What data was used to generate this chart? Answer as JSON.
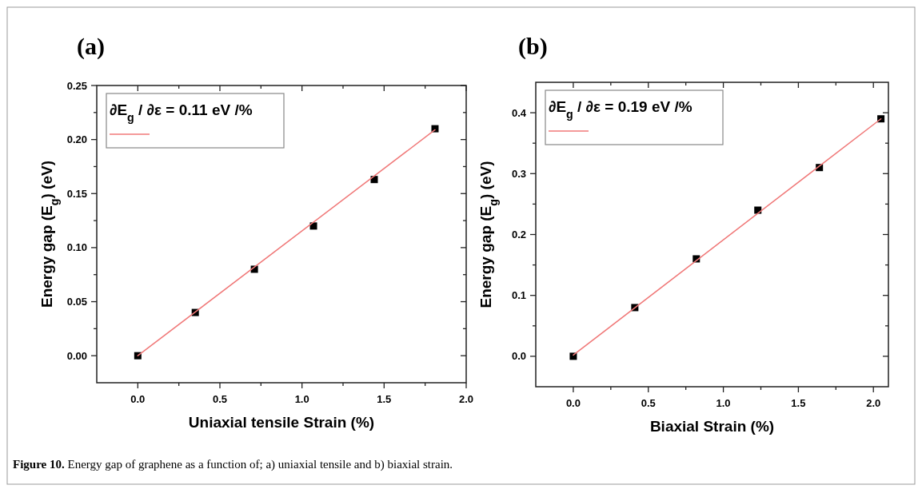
{
  "chart_data": [
    {
      "type": "scatter",
      "title": "(a)",
      "xlabel": "Uniaxial tensile Strain (%)",
      "ylabel": "Energy gap (E$_{g}$) (eV)",
      "legend": "top left",
      "xlim": [
        -0.25,
        2.0
      ],
      "ylim": [
        -0.025,
        0.25
      ],
      "xticks": [
        {
          "value": 0,
          "label": "0.0"
        },
        {
          "value": 0.25,
          "label": null
        },
        {
          "value": 0.5,
          "label": "0.5"
        },
        {
          "value": 0.75,
          "label": null
        },
        {
          "value": 1,
          "label": "1.0"
        },
        {
          "value": 1.25,
          "label": null
        },
        {
          "value": 1.5,
          "label": "1.5"
        },
        {
          "value": 1.75,
          "label": null
        },
        {
          "value": 2,
          "label": "2.0"
        }
      ],
      "yticks": [
        {
          "value": 0,
          "label": "0.00"
        },
        {
          "value": 0.025,
          "label": null
        },
        {
          "value": 0.05,
          "label": "0.05"
        },
        {
          "value": 0.075,
          "label": null
        },
        {
          "value": 0.1,
          "label": "0.10"
        },
        {
          "value": 0.125,
          "label": null
        },
        {
          "value": 0.15,
          "label": "0.15"
        },
        {
          "value": 0.175,
          "label": null
        },
        {
          "value": 0.2,
          "label": "0.20"
        },
        {
          "value": 0.225,
          "label": null
        },
        {
          "value": 0.25,
          "label": "0.25"
        }
      ],
      "series": [
        {
          "color": "#000000",
          "marker": "square",
          "x": [
            0,
            0.35,
            0.71,
            1.07,
            1.44,
            1.81
          ],
          "values": [
            0,
            0.04,
            0.08,
            0.12,
            0.163,
            0.21
          ]
        },
        {
          "type": "line",
          "name": "∂E$_{g}$ / ∂ε = 0.11 eV /%",
          "color": "#f07878",
          "x": [
            0,
            1.81
          ],
          "values": [
            0,
            0.209
          ]
        }
      ],
      "annotations": [
        "Figure 10. Energy gap of graphene as a function of; a) uniaxial tensile and b) biaxial strain."
      ]
    },
    {
      "type": "scatter",
      "title": "(b)",
      "xlabel": "Biaxial Strain (%)",
      "ylabel": "Energy gap (E$_{g}$) (eV)",
      "legend": "top left",
      "xlim": [
        -0.25,
        2.1
      ],
      "ylim": [
        -0.05,
        0.45
      ],
      "xticks": [
        {
          "value": 0,
          "label": "0.0"
        },
        {
          "value": 0.25,
          "label": null
        },
        {
          "value": 0.5,
          "label": "0.5"
        },
        {
          "value": 0.75,
          "label": null
        },
        {
          "value": 1,
          "label": "1.0"
        },
        {
          "value": 1.25,
          "label": null
        },
        {
          "value": 1.5,
          "label": "1.5"
        },
        {
          "value": 1.75,
          "label": null
        },
        {
          "value": 2,
          "label": "2.0"
        }
      ],
      "yticks": [
        {
          "value": 0,
          "label": "0.0"
        },
        {
          "value": 0.05,
          "label": null
        },
        {
          "value": 0.1,
          "label": "0.1"
        },
        {
          "value": 0.15,
          "label": null
        },
        {
          "value": 0.2,
          "label": "0.2"
        },
        {
          "value": 0.25,
          "label": null
        },
        {
          "value": 0.3,
          "label": "0.3"
        },
        {
          "value": 0.35,
          "label": null
        },
        {
          "value": 0.4,
          "label": "0.4"
        }
      ],
      "series": [
        {
          "color": "#000000",
          "marker": "square",
          "x": [
            0,
            0.41,
            0.82,
            1.23,
            1.64,
            2.05
          ],
          "values": [
            0,
            0.08,
            0.16,
            0.24,
            0.31,
            0.39
          ]
        },
        {
          "type": "line",
          "name": "∂E$_{g}$ / ∂ε = 0.19 eV /%",
          "color": "#f07878",
          "x": [
            0,
            2.05
          ],
          "values": [
            0.002,
            0.39
          ]
        }
      ]
    }
  ]
}
